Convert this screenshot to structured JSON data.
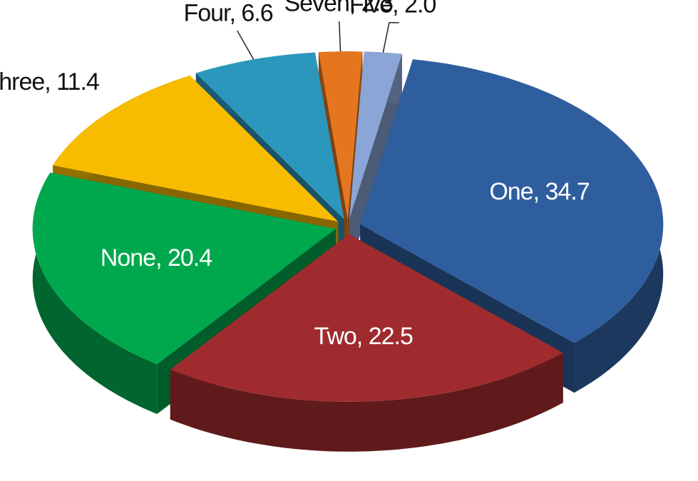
{
  "chart_data": {
    "type": "pie",
    "categories": [
      "One",
      "Two",
      "None",
      "Three",
      "Four",
      "Seven",
      "Five"
    ],
    "values": [
      34.7,
      22.5,
      20.4,
      11.4,
      6.6,
      2.3,
      2.0
    ],
    "value_labels": [
      "34.7",
      "22.5",
      "20.4",
      "11.4",
      "6.6",
      "2.3",
      "2.0"
    ],
    "colors": [
      "#2f5e9f",
      "#a02b2e",
      "#00a84d",
      "#f7bb00",
      "#2c97bd",
      "#e5761f",
      "#8aa5d6"
    ]
  }
}
